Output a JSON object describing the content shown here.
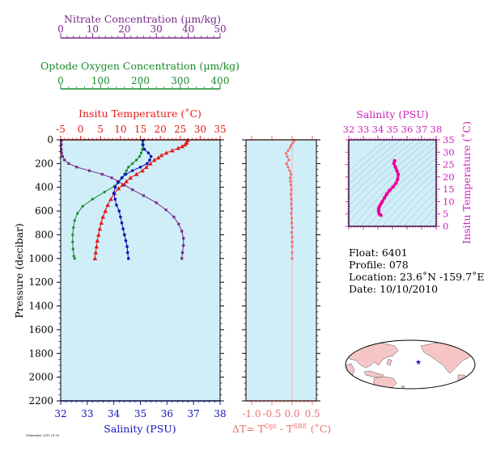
{
  "chart_data": {
    "type": "line",
    "axes": {
      "nitrate": {
        "label": "Nitrate Concentration (µm/kg)",
        "range": [
          0,
          50
        ],
        "ticks": [
          0,
          10,
          20,
          30,
          40,
          50
        ],
        "color": "#7a2a8a"
      },
      "oxygen": {
        "label": "Optode Oxygen Concentration (µm/kg)",
        "range": [
          0,
          400
        ],
        "ticks": [
          0,
          100,
          200,
          300,
          400
        ],
        "color": "#1a8a2a"
      },
      "temperature": {
        "label": "Insitu Temperature (˚C)",
        "range": [
          -5,
          35
        ],
        "ticks": [
          -5,
          0,
          5,
          10,
          15,
          20,
          25,
          30,
          35
        ],
        "color": "#e41a1a"
      },
      "salinity": {
        "label": "Salinity (PSU)",
        "range": [
          32,
          38
        ],
        "ticks": [
          32,
          33,
          34,
          35,
          36,
          37,
          38
        ],
        "color": "#1111bb"
      },
      "pressure": {
        "label": "Pressure (decibar)",
        "range": [
          0,
          2200
        ],
        "ticks": [
          0,
          200,
          400,
          600,
          800,
          1000,
          1200,
          1400,
          1600,
          1800,
          2000,
          2200
        ]
      },
      "delta_t": {
        "label_main": "ΔT= T",
        "sup1": "Opt",
        "label_mid": " - T",
        "sup2": "SBE",
        "label_end": " (˚C)",
        "range": [
          -1.0,
          0.5
        ],
        "ticks": [
          "-1.0",
          "-0.5",
          "0.0",
          "0.5"
        ],
        "color": "#f07070"
      },
      "ts_salinity": {
        "label": "Salinity (PSU)",
        "range": [
          32,
          38
        ],
        "ticks": [
          32,
          33,
          34,
          35,
          36,
          37,
          38
        ],
        "color": "#cc22bb"
      },
      "ts_temperature": {
        "label": "Insitu Temperature (˚C)",
        "range": [
          0,
          35
        ],
        "ticks": [
          0,
          5,
          10,
          15,
          20,
          25,
          30,
          35
        ],
        "color": "#cc22bb"
      }
    },
    "series": [
      {
        "key": "temperature",
        "marker": "triangle",
        "color": "#e41a1a",
        "points": [
          [
            26.8,
            5
          ],
          [
            26.6,
            25
          ],
          [
            26.2,
            40
          ],
          [
            25.5,
            55
          ],
          [
            24.5,
            70
          ],
          [
            23,
            90
          ],
          [
            21.5,
            110
          ],
          [
            20.3,
            130
          ],
          [
            19.5,
            150
          ],
          [
            18.5,
            170
          ],
          [
            17.5,
            200
          ],
          [
            16.5,
            230
          ],
          [
            15.5,
            260
          ],
          [
            14,
            290
          ],
          [
            12.5,
            320
          ],
          [
            11.5,
            350
          ],
          [
            10.5,
            380
          ],
          [
            9.5,
            410
          ],
          [
            8.5,
            450
          ],
          [
            7.6,
            500
          ],
          [
            6.8,
            550
          ],
          [
            6.2,
            600
          ],
          [
            5.6,
            650
          ],
          [
            5.2,
            700
          ],
          [
            4.8,
            750
          ],
          [
            4.5,
            800
          ],
          [
            4.2,
            850
          ],
          [
            4,
            900
          ],
          [
            3.8,
            950
          ],
          [
            3.6,
            1000
          ]
        ]
      },
      {
        "key": "salinity",
        "marker": "circle",
        "color": "#1111bb",
        "points": [
          [
            35.1,
            5
          ],
          [
            35.1,
            40
          ],
          [
            35.15,
            80
          ],
          [
            35.3,
            110
          ],
          [
            35.4,
            140
          ],
          [
            35.35,
            170
          ],
          [
            35.25,
            200
          ],
          [
            35.0,
            230
          ],
          [
            34.7,
            260
          ],
          [
            34.45,
            290
          ],
          [
            34.3,
            320
          ],
          [
            34.15,
            360
          ],
          [
            34.05,
            400
          ],
          [
            34.0,
            450
          ],
          [
            34.05,
            500
          ],
          [
            34.1,
            550
          ],
          [
            34.2,
            600
          ],
          [
            34.25,
            650
          ],
          [
            34.3,
            700
          ],
          [
            34.35,
            750
          ],
          [
            34.4,
            800
          ],
          [
            34.45,
            850
          ],
          [
            34.5,
            900
          ],
          [
            34.52,
            950
          ],
          [
            34.55,
            1000
          ]
        ]
      },
      {
        "key": "oxygen",
        "marker": "circle",
        "color": "#1a8a2a",
        "points": [
          [
            205,
            5
          ],
          [
            205,
            40
          ],
          [
            205,
            80
          ],
          [
            202,
            110
          ],
          [
            198,
            140
          ],
          [
            190,
            170
          ],
          [
            180,
            200
          ],
          [
            170,
            230
          ],
          [
            165,
            260
          ],
          [
            160,
            290
          ],
          [
            155,
            320
          ],
          [
            145,
            360
          ],
          [
            135,
            390
          ],
          [
            110,
            440
          ],
          [
            80,
            500
          ],
          [
            55,
            560
          ],
          [
            42,
            620
          ],
          [
            35,
            680
          ],
          [
            32,
            740
          ],
          [
            30,
            800
          ],
          [
            30,
            860
          ],
          [
            31,
            920
          ],
          [
            33,
            980
          ],
          [
            35,
            1000
          ]
        ]
      },
      {
        "key": "nitrate",
        "marker": "square",
        "color": "#7a2a8a",
        "points": [
          [
            0.2,
            5
          ],
          [
            0.2,
            40
          ],
          [
            0.2,
            80
          ],
          [
            0.3,
            110
          ],
          [
            0.6,
            140
          ],
          [
            1.2,
            170
          ],
          [
            2.5,
            200
          ],
          [
            5,
            230
          ],
          [
            9,
            260
          ],
          [
            13,
            290
          ],
          [
            16,
            320
          ],
          [
            18,
            350
          ],
          [
            20,
            380
          ],
          [
            22.5,
            420
          ],
          [
            26,
            470
          ],
          [
            30,
            530
          ],
          [
            33,
            590
          ],
          [
            35.5,
            650
          ],
          [
            37,
            710
          ],
          [
            38,
            770
          ],
          [
            38.5,
            830
          ],
          [
            38.5,
            890
          ],
          [
            38.2,
            950
          ],
          [
            38,
            1000
          ]
        ]
      },
      {
        "key": "delta_t",
        "marker": "circle",
        "color": "#f07070",
        "points": [
          [
            0.05,
            5
          ],
          [
            0.02,
            25
          ],
          [
            -0.02,
            45
          ],
          [
            -0.05,
            65
          ],
          [
            -0.1,
            90
          ],
          [
            -0.15,
            115
          ],
          [
            -0.12,
            140
          ],
          [
            -0.08,
            170
          ],
          [
            -0.14,
            200
          ],
          [
            -0.1,
            230
          ],
          [
            -0.06,
            260
          ],
          [
            -0.03,
            290
          ],
          [
            -0.05,
            320
          ],
          [
            -0.04,
            350
          ],
          [
            -0.03,
            380
          ],
          [
            -0.02,
            420
          ],
          [
            -0.03,
            460
          ],
          [
            -0.02,
            500
          ],
          [
            -0.02,
            540
          ],
          [
            -0.01,
            580
          ],
          [
            -0.02,
            620
          ],
          [
            -0.01,
            660
          ],
          [
            -0.01,
            700
          ],
          [
            0.0,
            740
          ],
          [
            -0.01,
            780
          ],
          [
            0.0,
            820
          ],
          [
            0.0,
            860
          ],
          [
            0.0,
            900
          ],
          [
            0.0,
            950
          ],
          [
            0.0,
            1000
          ]
        ]
      },
      {
        "key": "ts",
        "marker": "circle",
        "color": "#ee0099",
        "points": [
          [
            35.15,
            26.5
          ],
          [
            35.1,
            25.5
          ],
          [
            35.2,
            24.0
          ],
          [
            35.3,
            22.5
          ],
          [
            35.4,
            21.0
          ],
          [
            35.35,
            19.0
          ],
          [
            35.25,
            17.5
          ],
          [
            35.05,
            16.0
          ],
          [
            34.8,
            14.5
          ],
          [
            34.6,
            13.0
          ],
          [
            34.45,
            11.5
          ],
          [
            34.3,
            10.0
          ],
          [
            34.2,
            9.0
          ],
          [
            34.1,
            8.0
          ],
          [
            34.05,
            7.0
          ],
          [
            34.05,
            6.0
          ],
          [
            34.1,
            5.0
          ],
          [
            34.2,
            4.5
          ]
        ]
      }
    ]
  },
  "info": {
    "float": "Float:  6401",
    "profile": "Profile:  078",
    "location": "Location:  23.6˚N  -159.7˚E",
    "date": "Date:  10/10/2010"
  },
  "map": {
    "marker_lon": -159.7,
    "marker_lat": 23.6,
    "marker_color": "#1111bb"
  },
  "footer": "Generated: 2011 01 05",
  "colors": {
    "panel_bg": "#cfeef8"
  }
}
